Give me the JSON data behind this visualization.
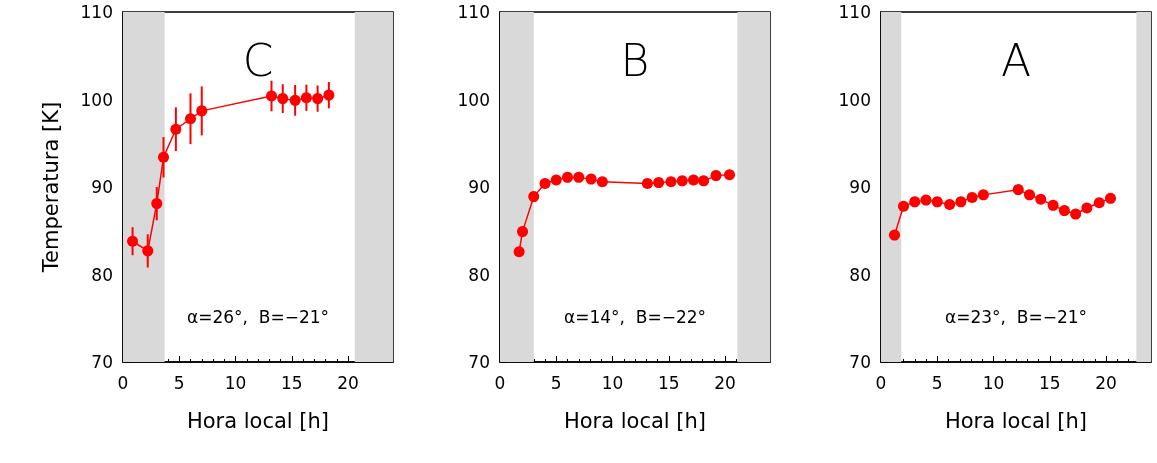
{
  "chart_data": [
    {
      "type": "line",
      "title": "C",
      "xlabel": "Hora local [h]",
      "ylabel": "Temperatura [K]",
      "annotations": [
        "α=26°,  B=−21°"
      ],
      "xlim": [
        0,
        24
      ],
      "xticks": [
        0,
        5,
        10,
        15,
        20
      ],
      "ylim": [
        70,
        110
      ],
      "yticks": [
        70,
        80,
        90,
        100,
        110
      ],
      "marker": "circle",
      "bands": [
        {
          "axis": "x",
          "from": 0,
          "to": 3.7,
          "color": "#d9d9d9"
        },
        {
          "axis": "x",
          "from": 20.6,
          "to": 24,
          "color": "#d9d9d9"
        }
      ],
      "series": [
        {
          "color": "#ff0000",
          "x": [
            0.85,
            2.2,
            3.0,
            3.6,
            4.7,
            6.0,
            7.0,
            13.2,
            14.2,
            15.3,
            16.3,
            17.3,
            18.3
          ],
          "values": [
            83.8,
            82.7,
            88.1,
            93.4,
            96.6,
            97.8,
            98.7,
            100.4,
            100.1,
            99.9,
            100.2,
            100.1,
            100.5
          ],
          "errors": [
            1.6,
            1.9,
            1.9,
            2.3,
            2.5,
            2.9,
            2.8,
            1.75,
            1.65,
            1.75,
            1.5,
            1.5,
            1.5
          ]
        }
      ]
    },
    {
      "type": "line",
      "title": "B",
      "xlabel": "Hora local [h]",
      "annotations": [
        "α=14°,  B=−22°"
      ],
      "xlim": [
        0,
        24
      ],
      "xticks": [
        0,
        5,
        10,
        15,
        20
      ],
      "ylim": [
        70,
        110
      ],
      "yticks": [
        70,
        80,
        90,
        100,
        110
      ],
      "marker": "circle",
      "bands": [
        {
          "axis": "x",
          "from": 0,
          "to": 3.0,
          "color": "#d9d9d9"
        },
        {
          "axis": "x",
          "from": 21.1,
          "to": 24,
          "color": "#d9d9d9"
        }
      ],
      "series": [
        {
          "color": "#ff0000",
          "x": [
            1.7,
            2.0,
            3.0,
            4.0,
            5.0,
            6.0,
            7.0,
            8.1,
            9.1,
            13.1,
            14.1,
            15.2,
            16.2,
            17.2,
            18.1,
            19.2,
            20.4
          ],
          "values": [
            82.6,
            84.9,
            88.9,
            90.4,
            90.8,
            91.1,
            91.1,
            90.9,
            90.6,
            90.4,
            90.5,
            90.6,
            90.7,
            90.8,
            90.7,
            91.3,
            91.4
          ]
        }
      ]
    },
    {
      "type": "line",
      "title": "A",
      "xlabel": "Hora local [h]",
      "annotations": [
        "α=23°,  B=−21°"
      ],
      "xlim": [
        0,
        24
      ],
      "xticks": [
        0,
        5,
        10,
        15,
        20
      ],
      "ylim": [
        70,
        110
      ],
      "yticks": [
        70,
        80,
        90,
        100,
        110
      ],
      "marker": "circle",
      "bands": [
        {
          "axis": "x",
          "from": 0,
          "to": 1.8,
          "color": "#d9d9d9"
        },
        {
          "axis": "x",
          "from": 22.7,
          "to": 24,
          "color": "#d9d9d9"
        }
      ],
      "series": [
        {
          "color": "#ff0000",
          "x": [
            1.2,
            2.0,
            3.0,
            4.0,
            5.0,
            6.1,
            7.1,
            8.1,
            9.1,
            12.2,
            13.2,
            14.2,
            15.3,
            16.3,
            17.3,
            18.3,
            19.4,
            20.4
          ],
          "values": [
            84.5,
            87.8,
            88.3,
            88.5,
            88.3,
            88.0,
            88.3,
            88.8,
            89.1,
            89.7,
            89.1,
            88.6,
            87.9,
            87.3,
            86.9,
            87.6,
            88.2,
            88.7
          ]
        }
      ]
    }
  ]
}
